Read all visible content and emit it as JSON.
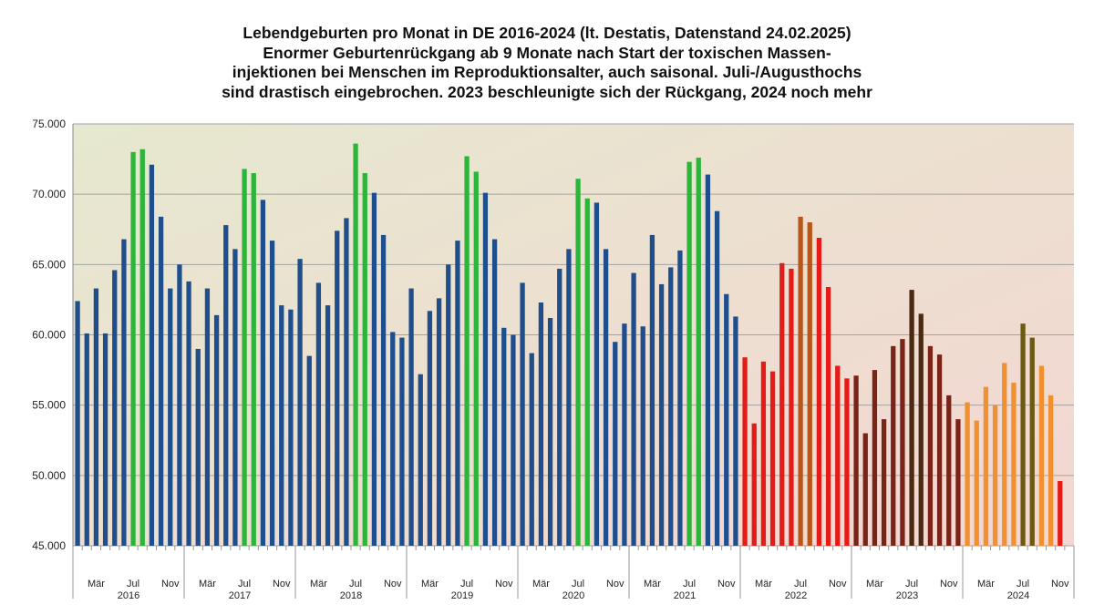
{
  "chart_data": {
    "type": "bar",
    "title_lines": [
      "Lebendgeburten pro Monat in DE 2016-2024 (lt. Destatis, Datenstand 24.02.2025)",
      "Enormer Geburtenrückgang ab 9 Monate nach Start der toxischen Massen-",
      "injektionen bei Menschen im Reproduktionsalter, auch saisonal. Juli-/Augusthochs",
      "sind drastisch eingebrochen. 2023 beschleunigte sich der Rückgang, 2024 noch mehr"
    ],
    "ylim": [
      45000,
      75000
    ],
    "yticks": [
      45000,
      50000,
      55000,
      60000,
      65000,
      70000,
      75000
    ],
    "ytick_labels": [
      "45.000",
      "50.000",
      "55.000",
      "60.000",
      "65.000",
      "70.000",
      "75.000"
    ],
    "month_labels": {
      "2": "Mär",
      "6": "Jul",
      "10": "Nov"
    },
    "years": [
      "2016",
      "2017",
      "2018",
      "2019",
      "2020",
      "2021",
      "2022",
      "2023",
      "2024"
    ],
    "grid": true,
    "background_gradient": [
      "#e6e8cf",
      "#f4d6d2"
    ],
    "values": [
      62400,
      60100,
      63300,
      60100,
      64600,
      66800,
      73000,
      73200,
      72100,
      68400,
      63300,
      65000,
      63800,
      59000,
      63300,
      61400,
      67800,
      66100,
      71800,
      71500,
      69600,
      66700,
      62100,
      61800,
      65400,
      58500,
      63700,
      62100,
      67400,
      68300,
      73600,
      71500,
      70100,
      67100,
      60200,
      59800,
      63300,
      57200,
      61700,
      62600,
      65000,
      66700,
      72700,
      71600,
      70100,
      66800,
      60500,
      60000,
      63700,
      58700,
      62300,
      61200,
      64700,
      66100,
      71100,
      69700,
      69400,
      66100,
      59500,
      60800,
      64400,
      60600,
      67100,
      63600,
      64800,
      66000,
      72300,
      72600,
      71400,
      68800,
      62900,
      61300,
      58400,
      53700,
      58100,
      57400,
      65100,
      64700,
      68400,
      68000,
      66900,
      63400,
      57800,
      56900,
      57100,
      53000,
      57500,
      54000,
      59200,
      59700,
      63200,
      61500,
      59200,
      58600,
      55700,
      54000,
      55200,
      53900,
      56300,
      55000,
      58000,
      56600,
      60800,
      59800,
      57800,
      55700,
      49600
    ],
    "colors": [
      "#1f4e8c",
      "#1f4e8c",
      "#1f4e8c",
      "#1f4e8c",
      "#1f4e8c",
      "#1f4e8c",
      "#2db43a",
      "#2db43a",
      "#1f4e8c",
      "#1f4e8c",
      "#1f4e8c",
      "#1f4e8c",
      "#1f4e8c",
      "#1f4e8c",
      "#1f4e8c",
      "#1f4e8c",
      "#1f4e8c",
      "#1f4e8c",
      "#2db43a",
      "#2db43a",
      "#1f4e8c",
      "#1f4e8c",
      "#1f4e8c",
      "#1f4e8c",
      "#1f4e8c",
      "#1f4e8c",
      "#1f4e8c",
      "#1f4e8c",
      "#1f4e8c",
      "#1f4e8c",
      "#2db43a",
      "#2db43a",
      "#1f4e8c",
      "#1f4e8c",
      "#1f4e8c",
      "#1f4e8c",
      "#1f4e8c",
      "#1f4e8c",
      "#1f4e8c",
      "#1f4e8c",
      "#1f4e8c",
      "#1f4e8c",
      "#2db43a",
      "#2db43a",
      "#1f4e8c",
      "#1f4e8c",
      "#1f4e8c",
      "#1f4e8c",
      "#1f4e8c",
      "#1f4e8c",
      "#1f4e8c",
      "#1f4e8c",
      "#1f4e8c",
      "#1f4e8c",
      "#2db43a",
      "#2db43a",
      "#1f4e8c",
      "#1f4e8c",
      "#1f4e8c",
      "#1f4e8c",
      "#1f4e8c",
      "#1f4e8c",
      "#1f4e8c",
      "#1f4e8c",
      "#1f4e8c",
      "#1f4e8c",
      "#2db43a",
      "#2db43a",
      "#1f4e8c",
      "#1f4e8c",
      "#1f4e8c",
      "#1f4e8c",
      "#e41b17",
      "#e41b17",
      "#e41b17",
      "#e41b17",
      "#e41b17",
      "#e41b17",
      "#b8561a",
      "#b8561a",
      "#e41b17",
      "#e41b17",
      "#e41b17",
      "#e41b17",
      "#7a2418",
      "#7a2418",
      "#7a2418",
      "#7a2418",
      "#7a2418",
      "#7a2418",
      "#4a2a12",
      "#4a2a12",
      "#7a2418",
      "#7a2418",
      "#7a2418",
      "#7a2418",
      "#f0902e",
      "#f0902e",
      "#f0902e",
      "#f0902e",
      "#f0902e",
      "#f0902e",
      "#6b5a14",
      "#6b5a14",
      "#f0902e",
      "#f0902e",
      "#e41b17"
    ]
  }
}
